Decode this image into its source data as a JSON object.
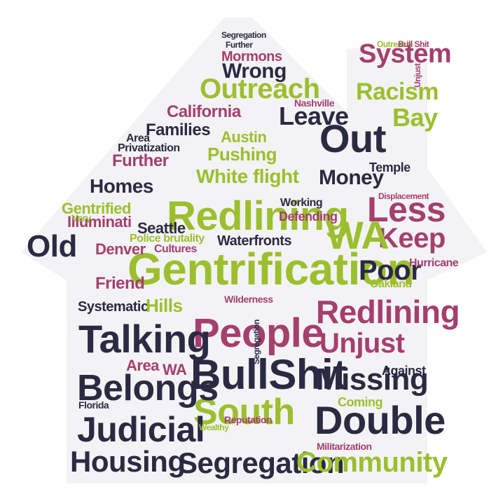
{
  "palette": {
    "navy": "#2a2a42",
    "green": "#9cbf2e",
    "plum": "#a43f6e",
    "house_fill": "#f3f3f6"
  },
  "words": {
    "gentrification": "Gentrification",
    "redlining": "Redlining",
    "people": "People",
    "bullshit": "BullShit",
    "south": "South",
    "talking": "Talking",
    "belongs": "Belongs",
    "judicial": "Judicial",
    "housing": "Housing",
    "segregation": "Segregation",
    "community": "Community",
    "double": "Double",
    "missing": "Missing",
    "unjust": "Unjust",
    "system": "System",
    "racism": "Racism",
    "outreach": "Outreach",
    "wrong": "Wrong",
    "california": "California",
    "families": "Families",
    "homes": "Homes",
    "white_flight": "White flight",
    "pushing": "Pushing",
    "austin": "Austin",
    "leave": "Leave",
    "out": "Out",
    "money": "Money",
    "less": "Less",
    "keep": "Keep",
    "wa": "WA",
    "poor": "Poor",
    "old": "Old",
    "bay": "Bay",
    "friend": "Friend",
    "hills": "Hills",
    "systematic": "Systematic",
    "illuminati": "Illuminati",
    "gentrified": "Gentrified",
    "further": "Further",
    "privatization": "Privatization",
    "area": "Area",
    "seattle": "Seattle",
    "denver": "Denver",
    "hurricane": "Hurricane",
    "oakland": "Oakland",
    "cultures": "Cultures",
    "waterfronts": "Waterfronts",
    "police_brutality": "Police brutality",
    "nashville": "Nashville",
    "defending": "Defending",
    "wilderness": "Wilderness",
    "florida": "Florida",
    "mormons": "Mormons",
    "temple": "Temple",
    "working": "Working",
    "very": "Very",
    "coming": "Coming",
    "against": "Against",
    "reputation": "Reputation",
    "militarization": "Militarization",
    "wealthy": "Wealthy",
    "displacement": "Displacement",
    "outreach_small": "Outreach",
    "bull_shit_small": "Bull Shit",
    "segregation_small": "Segregation",
    "further_small": "Further"
  }
}
